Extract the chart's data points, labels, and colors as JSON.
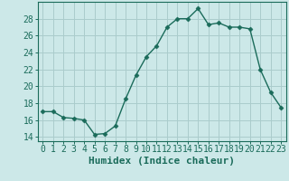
{
  "x": [
    0,
    1,
    2,
    3,
    4,
    5,
    6,
    7,
    8,
    9,
    10,
    11,
    12,
    13,
    14,
    15,
    16,
    17,
    18,
    19,
    20,
    21,
    22,
    23
  ],
  "y": [
    17.0,
    17.0,
    16.3,
    16.2,
    16.0,
    14.3,
    14.4,
    15.3,
    18.5,
    21.3,
    23.5,
    24.8,
    27.0,
    28.0,
    28.0,
    29.2,
    27.3,
    27.5,
    27.0,
    27.0,
    26.8,
    22.0,
    19.3,
    17.5
  ],
  "line_color": "#1a6b5a",
  "marker": "D",
  "marker_size": 2.5,
  "bg_color": "#cce8e8",
  "grid_color": "#aacccc",
  "xlabel": "Humidex (Indice chaleur)",
  "ylim": [
    13.5,
    30
  ],
  "xlim": [
    -0.5,
    23.5
  ],
  "yticks": [
    14,
    16,
    18,
    20,
    22,
    24,
    26,
    28
  ],
  "xtick_labels": [
    "0",
    "1",
    "2",
    "3",
    "4",
    "5",
    "6",
    "7",
    "8",
    "9",
    "10",
    "11",
    "12",
    "13",
    "14",
    "15",
    "16",
    "17",
    "18",
    "19",
    "20",
    "21",
    "22",
    "23"
  ],
  "xlabel_fontsize": 8,
  "tick_fontsize": 7,
  "tick_color": "#1a6b5a"
}
